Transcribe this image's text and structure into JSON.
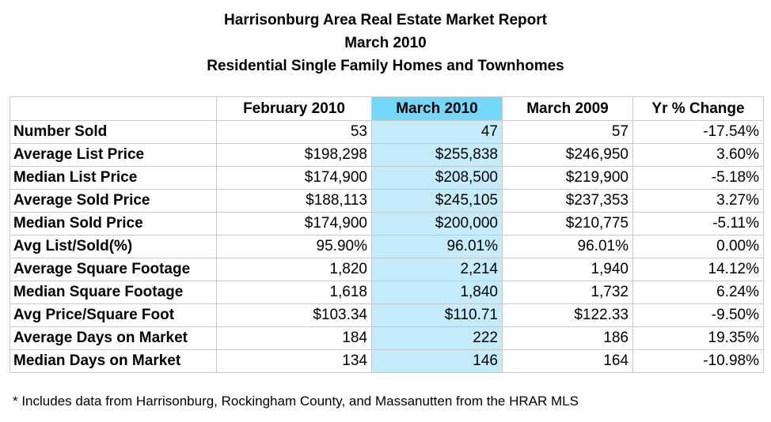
{
  "title": "Harrisonburg Area Real Estate Market Report",
  "subtitle": "March 2010",
  "subtitle2": "Residential Single Family Homes and Townhomes",
  "footnote": "* Includes data from Harrisonburg, Rockingham County, and Massanutten from the HRAR MLS",
  "colors": {
    "highlight_header": "#72d8f7",
    "highlight_column": "#c5ecfa",
    "grid": "#c8c8c8"
  },
  "chart_data": {
    "type": "table",
    "columns": [
      "",
      "February 2010",
      "March 2010",
      "March 2009",
      "Yr % Change"
    ],
    "highlighted_column": "March 2010",
    "rows": [
      [
        "Number Sold",
        "53",
        "47",
        "57",
        "-17.54%"
      ],
      [
        "Average List Price",
        "$198,298",
        "$255,838",
        "$246,950",
        "3.60%"
      ],
      [
        "Median List Price",
        "$174,900",
        "$208,500",
        "$219,900",
        "-5.18%"
      ],
      [
        "Average Sold Price",
        "$188,113",
        "$245,105",
        "$237,353",
        "3.27%"
      ],
      [
        "Median Sold Price",
        "$174,900",
        "$200,000",
        "$210,775",
        "-5.11%"
      ],
      [
        "Avg List/Sold(%)",
        "95.90%",
        "96.01%",
        "96.01%",
        "0.00%"
      ],
      [
        "Average Square Footage",
        "1,820",
        "2,214",
        "1,940",
        "14.12%"
      ],
      [
        "Median Square Footage",
        "1,618",
        "1,840",
        "1,732",
        "6.24%"
      ],
      [
        "Avg Price/Square Foot",
        "$103.34",
        "$110.71",
        "$122.33",
        "-9.50%"
      ],
      [
        "Average Days on Market",
        "184",
        "222",
        "186",
        "19.35%"
      ],
      [
        "Median Days on Market",
        "134",
        "146",
        "164",
        "-10.98%"
      ]
    ]
  }
}
